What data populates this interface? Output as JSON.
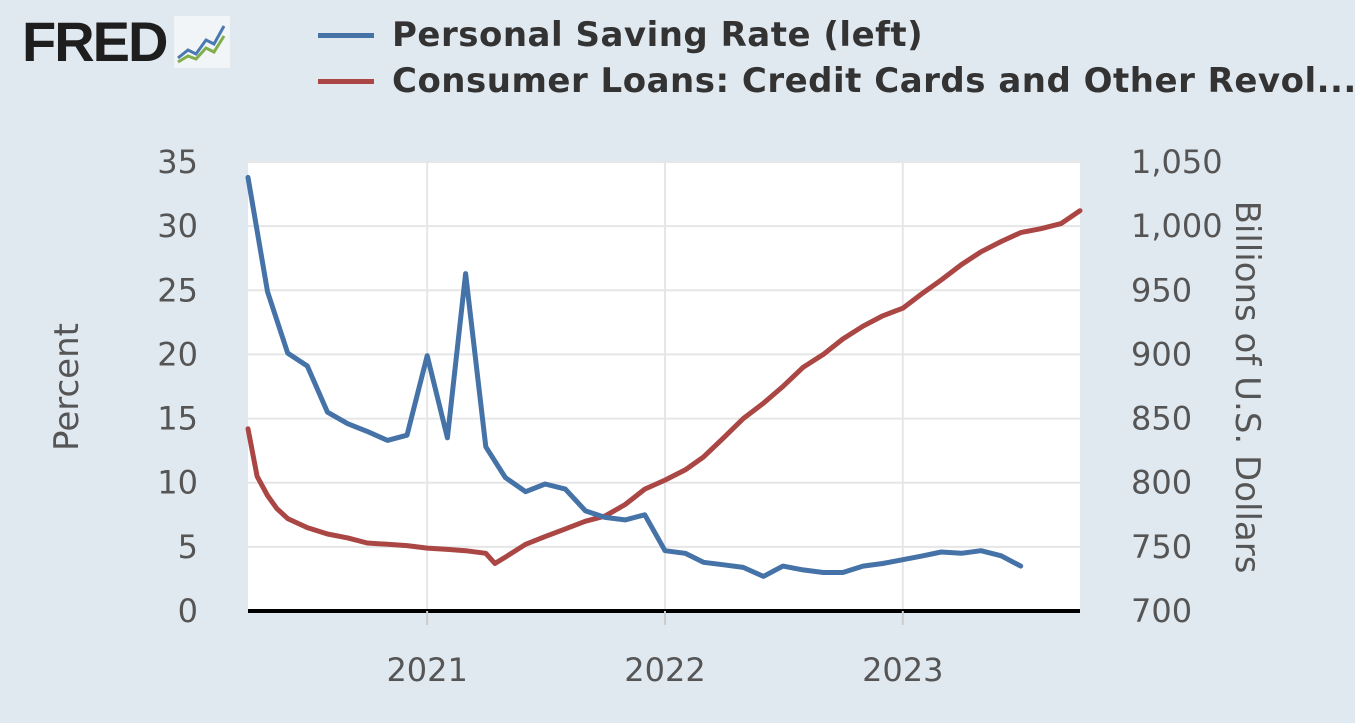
{
  "logo": {
    "text": "FRED"
  },
  "chart_data": {
    "type": "line",
    "title": "",
    "legend_position": "top",
    "grid": true,
    "xlabel": "",
    "ylabel_left": "Percent",
    "ylabel_right": "Billions of U.S. Dollars",
    "x_ticks": [
      "2021",
      "2022",
      "2023"
    ],
    "y_left_ticks": [
      "0",
      "5",
      "10",
      "15",
      "20",
      "25",
      "30",
      "35"
    ],
    "y_right_ticks": [
      "700",
      "750",
      "800",
      "850",
      "900",
      "950",
      "1,000",
      "1,050"
    ],
    "ylim_left": [
      0,
      35
    ],
    "ylim_right": [
      700,
      1050
    ],
    "x_range": [
      "2020-04-01",
      "2023-09-30"
    ],
    "series": [
      {
        "name": "Personal Saving Rate (left)",
        "axis": "left",
        "color": "#4572a7",
        "x": [
          "2020-04-01",
          "2020-05-01",
          "2020-06-01",
          "2020-07-01",
          "2020-08-01",
          "2020-09-01",
          "2020-10-01",
          "2020-11-01",
          "2020-12-01",
          "2021-01-01",
          "2021-02-01",
          "2021-03-01",
          "2021-04-01",
          "2021-05-01",
          "2021-06-01",
          "2021-07-01",
          "2021-08-01",
          "2021-09-01",
          "2021-10-01",
          "2021-11-01",
          "2021-12-01",
          "2022-01-01",
          "2022-02-01",
          "2022-03-01",
          "2022-04-01",
          "2022-05-01",
          "2022-06-01",
          "2022-07-01",
          "2022-08-01",
          "2022-09-01",
          "2022-10-01",
          "2022-11-01",
          "2022-12-01",
          "2023-01-01",
          "2023-02-01",
          "2023-03-01",
          "2023-04-01",
          "2023-05-01",
          "2023-06-01",
          "2023-07-01"
        ],
        "values": [
          33.8,
          24.9,
          20.1,
          19.1,
          15.5,
          14.6,
          14.0,
          13.3,
          13.7,
          19.9,
          13.5,
          26.3,
          12.8,
          10.4,
          9.3,
          9.9,
          9.5,
          7.8,
          7.3,
          7.1,
          7.5,
          4.7,
          4.5,
          3.8,
          3.6,
          3.4,
          2.7,
          3.5,
          3.2,
          3.0,
          3.0,
          3.5,
          3.7,
          4.0,
          4.3,
          4.6,
          4.5,
          4.7,
          4.3,
          3.5
        ]
      },
      {
        "name": "Consumer Loans: Credit Cards and Other Revol...",
        "axis": "right",
        "color": "#aa4643",
        "x": [
          "2020-04-01",
          "2020-04-15",
          "2020-05-01",
          "2020-05-15",
          "2020-06-01",
          "2020-07-01",
          "2020-08-01",
          "2020-09-01",
          "2020-10-01",
          "2020-11-01",
          "2020-12-01",
          "2021-01-01",
          "2021-02-01",
          "2021-03-01",
          "2021-04-01",
          "2021-04-15",
          "2021-05-01",
          "2021-06-01",
          "2021-07-01",
          "2021-08-01",
          "2021-09-01",
          "2021-10-01",
          "2021-11-01",
          "2021-12-01",
          "2022-01-01",
          "2022-02-01",
          "2022-03-01",
          "2022-04-01",
          "2022-05-01",
          "2022-06-01",
          "2022-07-01",
          "2022-08-01",
          "2022-09-01",
          "2022-10-01",
          "2022-11-01",
          "2022-12-01",
          "2023-01-01",
          "2023-02-01",
          "2023-03-01",
          "2023-04-01",
          "2023-05-01",
          "2023-06-01",
          "2023-07-01",
          "2023-08-01",
          "2023-09-01",
          "2023-09-30"
        ],
        "values": [
          842,
          805,
          790,
          780,
          772,
          765,
          760,
          757,
          753,
          752,
          751,
          749,
          748,
          747,
          745,
          737,
          742,
          752,
          758,
          764,
          770,
          774,
          783,
          795,
          802,
          810,
          820,
          835,
          850,
          862,
          875,
          890,
          900,
          912,
          922,
          930,
          936,
          948,
          958,
          970,
          980,
          988,
          995,
          998,
          1002,
          1012
        ]
      }
    ]
  }
}
